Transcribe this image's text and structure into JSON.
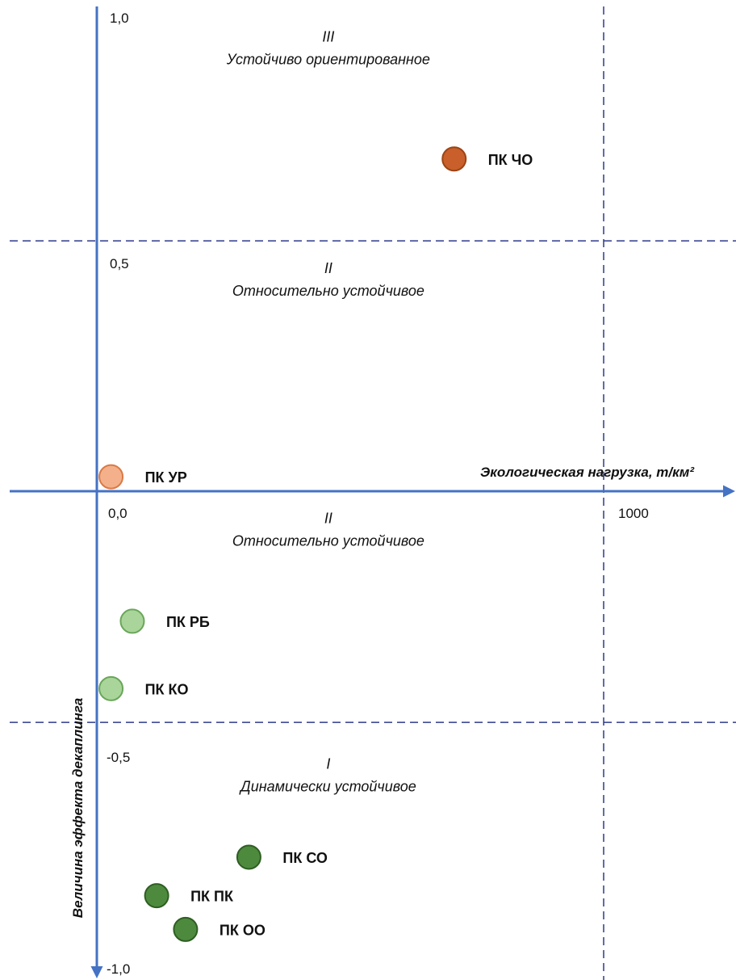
{
  "chart_data": {
    "type": "scatter",
    "xlabel": "Экологическая нагрузка, т/км²",
    "ylabel": "Величина эффекта декаплинга",
    "xlim": [
      0,
      1200
    ],
    "ylim": [
      -1.0,
      1.0
    ],
    "x_ticks": [
      {
        "value": 0,
        "label": "0,0"
      },
      {
        "value": 1000,
        "label": "1000"
      }
    ],
    "y_ticks": [
      {
        "value": 1.0,
        "label": "1,0"
      },
      {
        "value": 0.5,
        "label": "0,5"
      },
      {
        "value": -0.5,
        "label": "-0,5"
      },
      {
        "value": -1.0,
        "label": "-1,0"
      }
    ],
    "reference_lines": {
      "horizontal": [
        0.52,
        -0.48
      ],
      "vertical": [
        1000
      ]
    },
    "zones": [
      {
        "numeral": "III",
        "name": "Устойчиво ориентированное",
        "x": 640,
        "y": 0.93
      },
      {
        "numeral": "II",
        "name": "Относительно устойчивое",
        "x": 640,
        "y": 0.45
      },
      {
        "numeral": "II",
        "name": "Относительно устойчивое",
        "x": 640,
        "y": -0.07
      },
      {
        "numeral": "I",
        "name": "Динамически устойчивое",
        "x": 640,
        "y": -0.58
      }
    ],
    "points": [
      {
        "label": "ПК ЧО",
        "x": 705,
        "y": 0.69,
        "color": "#c95f2a",
        "stroke": "#9c4415"
      },
      {
        "label": "ПК УР",
        "x": 28,
        "y": 0.03,
        "color": "#f4b08a",
        "stroke": "#d97a45"
      },
      {
        "label": "ПК РБ",
        "x": 70,
        "y": -0.27,
        "color": "#a9d59a",
        "stroke": "#6aa65a"
      },
      {
        "label": "ПК КО",
        "x": 28,
        "y": -0.41,
        "color": "#a9d59a",
        "stroke": "#6aa65a"
      },
      {
        "label": "ПК СО",
        "x": 300,
        "y": -0.76,
        "color": "#4e8a3e",
        "stroke": "#2e5e22"
      },
      {
        "label": "ПК ПК",
        "x": 118,
        "y": -0.84,
        "color": "#4e8a3e",
        "stroke": "#2e5e22"
      },
      {
        "label": "ПК ОО",
        "x": 175,
        "y": -0.91,
        "color": "#4e8a3e",
        "stroke": "#2e5e22"
      }
    ],
    "colors": {
      "axis": "#4472c4",
      "reference_line": "#2e3a8c"
    }
  }
}
